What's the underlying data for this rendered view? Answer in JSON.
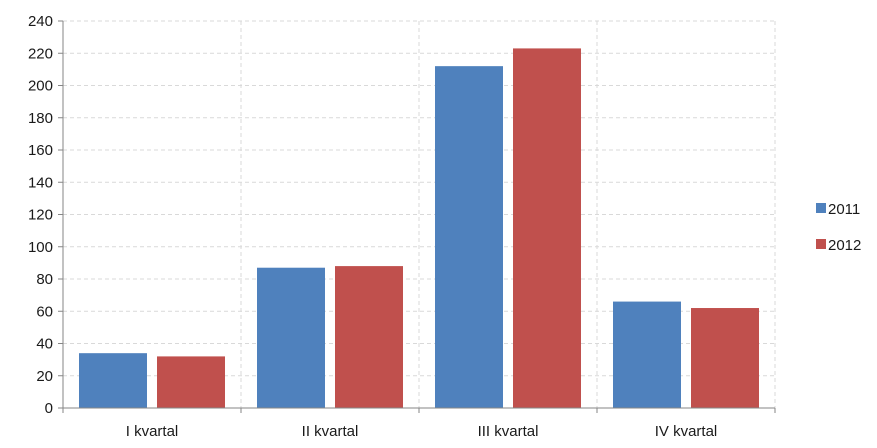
{
  "chart_data": {
    "type": "bar",
    "categories": [
      "I kvartal",
      "II kvartal",
      "III kvartal",
      "IV kvartal"
    ],
    "series": [
      {
        "name": "2011",
        "values": [
          34,
          87,
          212,
          66
        ],
        "color": "#4f81bd"
      },
      {
        "name": "2012",
        "values": [
          32,
          88,
          223,
          62
        ],
        "color": "#c0504d"
      }
    ],
    "ylim": [
      0,
      240
    ],
    "yticks": [
      0,
      20,
      40,
      60,
      80,
      100,
      120,
      140,
      160,
      180,
      200,
      220,
      240
    ],
    "ytick_labels": [
      "0",
      "20",
      "40",
      "60",
      "80",
      "100",
      "120",
      "140",
      "160",
      "180",
      "200",
      "220",
      "240"
    ],
    "grid": true,
    "legend_position": "right",
    "title": "",
    "xlabel": "",
    "ylabel": ""
  }
}
